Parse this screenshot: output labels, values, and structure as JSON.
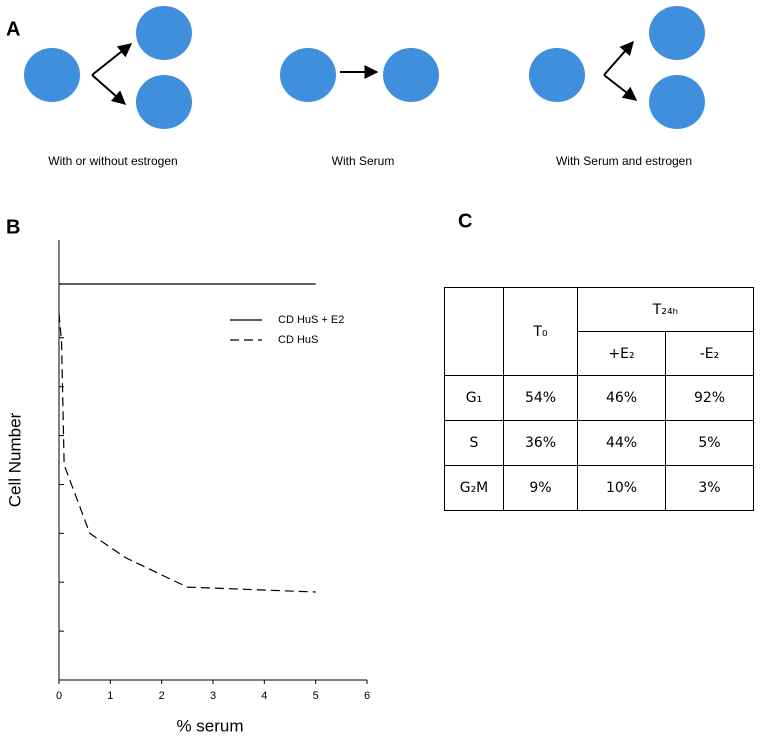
{
  "panel_a": {
    "label": "A",
    "captions": [
      "With or without estrogen",
      "With Serum",
      "With Serum and estrogen"
    ]
  },
  "panel_b": {
    "label": "B"
  },
  "chart_data": {
    "type": "line",
    "x_label": "% serum",
    "y_label": "Cell Number",
    "xlim": [
      0,
      6
    ],
    "xticks": [
      0,
      1,
      2,
      3,
      4,
      5,
      6
    ],
    "ylim": [
      0,
      9
    ],
    "yticks": [
      {
        "value": 1,
        "label": null
      },
      {
        "value": 2,
        "label": null
      },
      {
        "value": 3,
        "label": null
      },
      {
        "value": 4,
        "label": null
      },
      {
        "value": 5,
        "label": null
      },
      {
        "value": 6,
        "label": null
      },
      {
        "value": 7,
        "label": null
      }
    ],
    "series": [
      {
        "name": "CD HuS + E2",
        "color": "#000000",
        "style": "solid",
        "x": [
          0,
          5
        ],
        "values": [
          8.1,
          8.1
        ]
      },
      {
        "name": "CD HuS",
        "color": "#000000",
        "style": "dashed",
        "x": [
          0,
          0.05,
          0.1,
          0.6,
          1.3,
          2.5,
          5
        ],
        "values": [
          7.5,
          6.9,
          4.4,
          3.0,
          2.5,
          1.9,
          1.8
        ]
      }
    ]
  },
  "panel_c": {
    "label": "C",
    "table": {
      "header": [
        "T₀",
        "T₂₄ₕ",
        "+E₂",
        "-E₂"
      ],
      "rows": [
        [
          "G₁",
          "54%",
          "46%",
          "92%"
        ],
        [
          "S",
          "36%",
          "44%",
          "5%"
        ],
        [
          "G₂M",
          "9%",
          "10%",
          "3%"
        ]
      ]
    }
  }
}
